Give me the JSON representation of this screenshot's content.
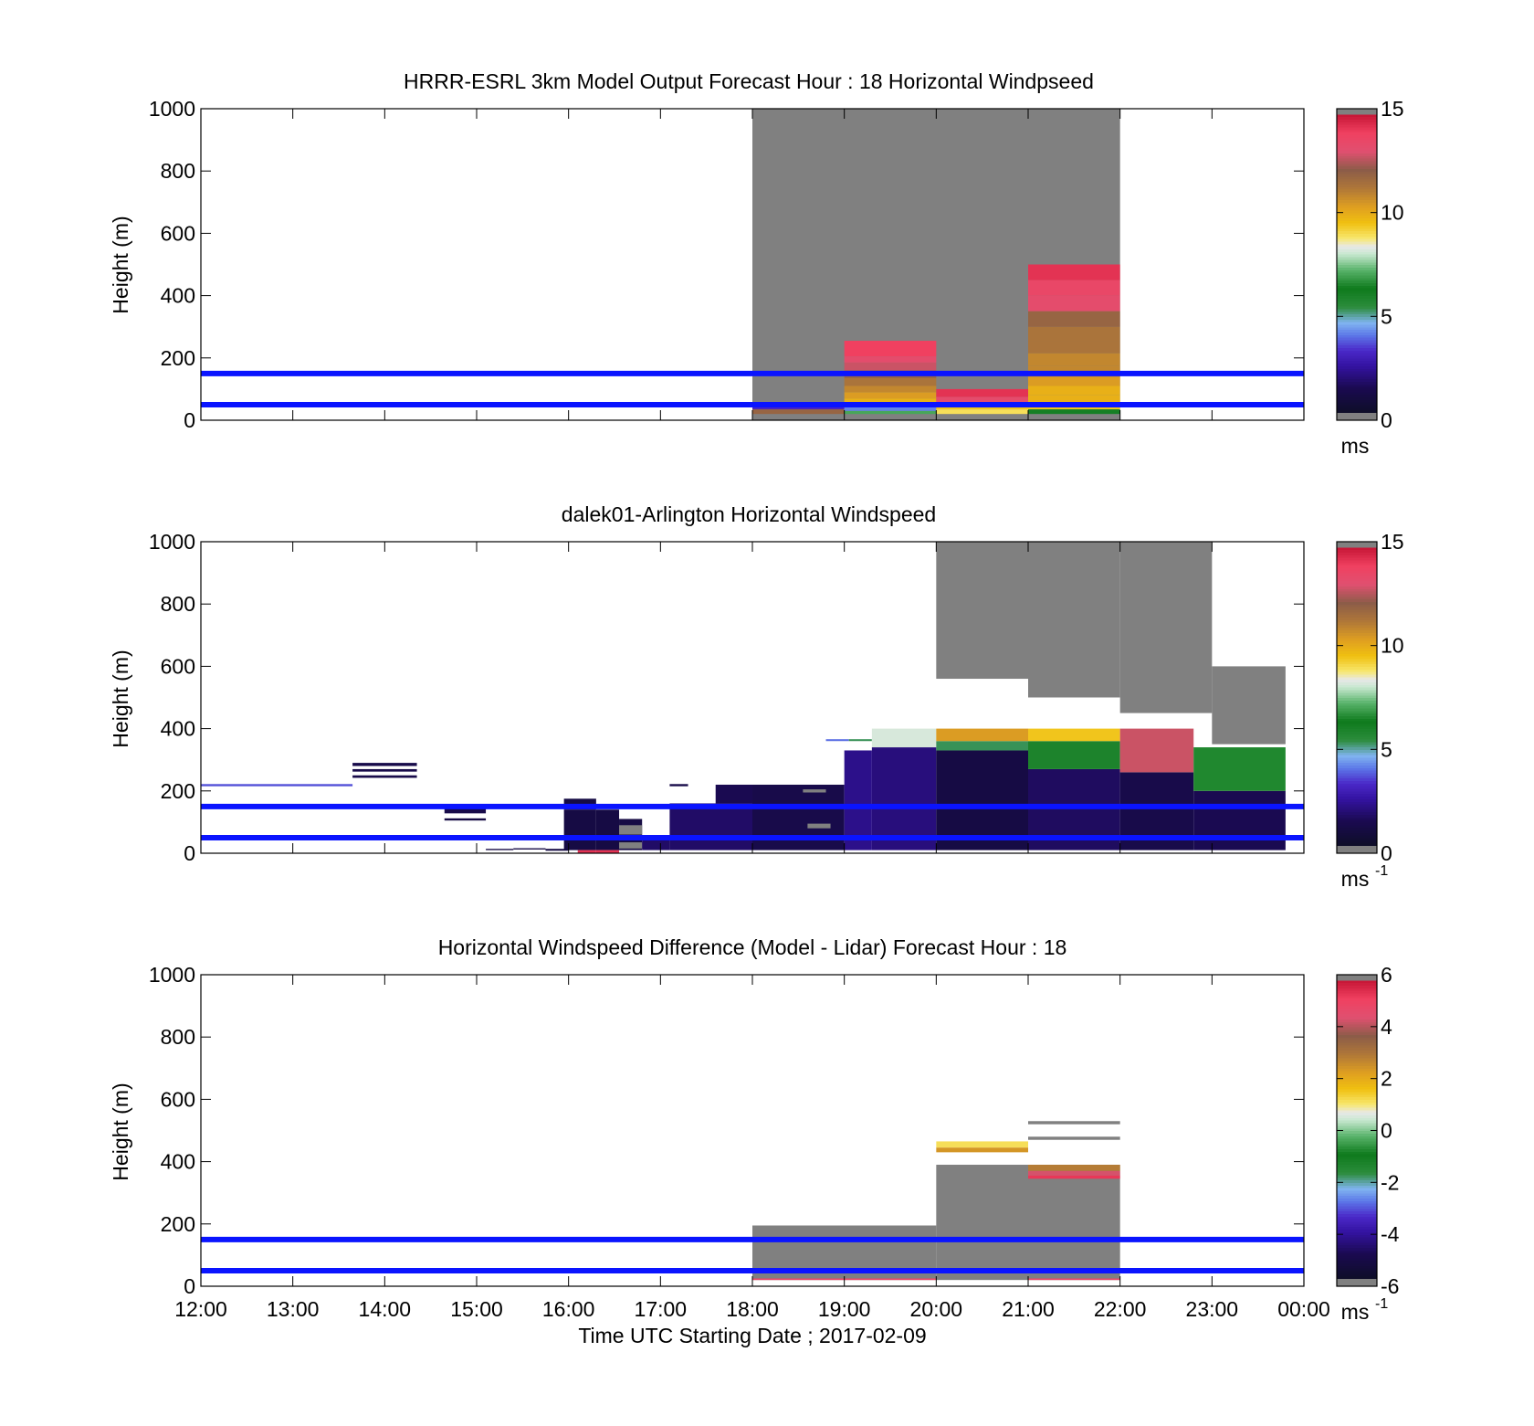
{
  "chart_data": [
    {
      "type": "heatmap",
      "title": "HRRR-ESRL 3km Model Output   Forecast Hour : 18 Horizontal Windpseed",
      "ylabel": "Height (m)",
      "xlim": [
        12,
        24
      ],
      "ylim": [
        0,
        1000
      ],
      "yticks": [
        "0",
        "200",
        "400",
        "600",
        "800",
        "1000"
      ],
      "colorbar": {
        "range": [
          0,
          15
        ],
        "ticks": [
          "0",
          "5",
          "10",
          "15"
        ],
        "unit": "ms",
        "unit_sup": ""
      },
      "reference_lines_m": [
        50,
        150
      ],
      "cells": [
        {
          "t0": 18,
          "t1": 22,
          "z0": 0,
          "z1": 1000,
          "v": "nan"
        },
        {
          "t0": 18,
          "t1": 19,
          "z0": 20,
          "z1": 35,
          "v": 12
        },
        {
          "t0": 18,
          "t1": 19,
          "z0": 35,
          "z1": 45,
          "v": 3
        },
        {
          "t0": 19,
          "t1": 20,
          "z0": 20,
          "z1": 30,
          "v": 7
        },
        {
          "t0": 19,
          "t1": 20,
          "z0": 30,
          "z1": 50,
          "v": 4
        },
        {
          "t0": 19,
          "t1": 20,
          "z0": 50,
          "z1": 70,
          "v": 10
        },
        {
          "t0": 19,
          "t1": 20,
          "z0": 70,
          "z1": 90,
          "v": 10.5
        },
        {
          "t0": 19,
          "t1": 20,
          "z0": 90,
          "z1": 110,
          "v": 11
        },
        {
          "t0": 19,
          "t1": 20,
          "z0": 110,
          "z1": 135,
          "v": 11.5
        },
        {
          "t0": 19,
          "t1": 20,
          "z0": 135,
          "z1": 160,
          "v": 12
        },
        {
          "t0": 19,
          "t1": 20,
          "z0": 160,
          "z1": 185,
          "v": 13
        },
        {
          "t0": 19,
          "t1": 20,
          "z0": 185,
          "z1": 205,
          "v": 13.5
        },
        {
          "t0": 19,
          "t1": 20,
          "z0": 205,
          "z1": 255,
          "v": 14.2
        },
        {
          "t0": 20,
          "t1": 21,
          "z0": 20,
          "z1": 35,
          "v": 9
        },
        {
          "t0": 20,
          "t1": 21,
          "z0": 35,
          "z1": 55,
          "v": 9.5
        },
        {
          "t0": 20,
          "t1": 21,
          "z0": 55,
          "z1": 75,
          "v": 13.5
        },
        {
          "t0": 20,
          "t1": 21,
          "z0": 75,
          "z1": 100,
          "v": 14.5
        },
        {
          "t0": 21,
          "t1": 22,
          "z0": 20,
          "z1": 35,
          "v": 6
        },
        {
          "t0": 21,
          "t1": 22,
          "z0": 35,
          "z1": 55,
          "v": 9.5
        },
        {
          "t0": 21,
          "t1": 22,
          "z0": 55,
          "z1": 80,
          "v": 10
        },
        {
          "t0": 21,
          "t1": 22,
          "z0": 80,
          "z1": 110,
          "v": 10
        },
        {
          "t0": 21,
          "t1": 22,
          "z0": 110,
          "z1": 140,
          "v": 10.5
        },
        {
          "t0": 21,
          "t1": 22,
          "z0": 140,
          "z1": 175,
          "v": 11
        },
        {
          "t0": 21,
          "t1": 22,
          "z0": 175,
          "z1": 215,
          "v": 11
        },
        {
          "t0": 21,
          "t1": 22,
          "z0": 215,
          "z1": 255,
          "v": 11.5
        },
        {
          "t0": 21,
          "t1": 22,
          "z0": 255,
          "z1": 300,
          "v": 11.5
        },
        {
          "t0": 21,
          "t1": 22,
          "z0": 300,
          "z1": 350,
          "v": 12
        },
        {
          "t0": 21,
          "t1": 22,
          "z0": 350,
          "z1": 400,
          "v": 13.5
        },
        {
          "t0": 21,
          "t1": 22,
          "z0": 400,
          "z1": 450,
          "v": 13.8
        },
        {
          "t0": 21,
          "t1": 22,
          "z0": 450,
          "z1": 500,
          "v": 14.5
        }
      ]
    },
    {
      "type": "heatmap",
      "title": "dalek01-Arlington  Horizontal Windspeed",
      "ylabel": "Height (m)",
      "xlim": [
        12,
        24
      ],
      "ylim": [
        0,
        1000
      ],
      "yticks": [
        "0",
        "200",
        "400",
        "600",
        "800",
        "1000"
      ],
      "colorbar": {
        "range": [
          0,
          15
        ],
        "ticks": [
          "0",
          "5",
          "10",
          "15"
        ],
        "unit": "ms",
        "unit_sup": "-1"
      },
      "reference_lines_m": [
        50,
        150
      ],
      "cells": [
        {
          "t0": 12.0,
          "t1": 13.65,
          "z0": 215,
          "z1": 222,
          "v": 3.5
        },
        {
          "t0": 13.65,
          "t1": 14.35,
          "z0": 280,
          "z1": 290,
          "v": 1
        },
        {
          "t0": 13.65,
          "t1": 14.35,
          "z0": 262,
          "z1": 270,
          "v": 1
        },
        {
          "t0": 13.65,
          "t1": 14.35,
          "z0": 242,
          "z1": 250,
          "v": 1
        },
        {
          "t0": 14.65,
          "t1": 15.1,
          "z0": 128,
          "z1": 150,
          "v": 1
        },
        {
          "t0": 14.65,
          "t1": 15.1,
          "z0": 105,
          "z1": 112,
          "v": 0.8
        },
        {
          "t0": 15.1,
          "t1": 15.4,
          "z0": 10,
          "z1": 14,
          "v": 0.8
        },
        {
          "t0": 15.4,
          "t1": 15.75,
          "z0": 12,
          "z1": 16,
          "v": 0.8
        },
        {
          "t0": 15.75,
          "t1": 16.0,
          "z0": 8,
          "z1": 14,
          "v": 0.8
        },
        {
          "t0": 15.95,
          "t1": 16.3,
          "z0": 140,
          "z1": 175,
          "v": 0.8
        },
        {
          "t0": 15.95,
          "t1": 16.3,
          "z0": 10,
          "z1": 140,
          "v": 0.8
        },
        {
          "t0": 16.1,
          "t1": 16.3,
          "z0": 0,
          "z1": 10,
          "v": 14.5
        },
        {
          "t0": 16.3,
          "t1": 16.55,
          "z0": 10,
          "z1": 140,
          "v": 0.8
        },
        {
          "t0": 16.3,
          "t1": 16.55,
          "z0": 0,
          "z1": 10,
          "v": 14.5
        },
        {
          "t0": 16.55,
          "t1": 16.8,
          "z0": 10,
          "z1": 110,
          "v": 0.8
        },
        {
          "t0": 16.55,
          "t1": 16.8,
          "z0": 60,
          "z1": 90,
          "v": "nan"
        },
        {
          "t0": 16.55,
          "t1": 16.8,
          "z0": 15,
          "z1": 35,
          "v": "nan"
        },
        {
          "t0": 16.8,
          "t1": 17.1,
          "z0": 10,
          "z1": 50,
          "v": 1.5
        },
        {
          "t0": 17.1,
          "t1": 18.0,
          "z0": 10,
          "z1": 160,
          "v": 1.5
        },
        {
          "t0": 17.1,
          "t1": 17.3,
          "z0": 215,
          "z1": 222,
          "v": 1
        },
        {
          "t0": 17.6,
          "t1": 18.0,
          "z0": 160,
          "z1": 220,
          "v": 1.2
        },
        {
          "t0": 18.0,
          "t1": 19.0,
          "z0": 10,
          "z1": 220,
          "v": 1.0
        },
        {
          "t0": 18.6,
          "t1": 18.85,
          "z0": 80,
          "z1": 95,
          "v": "nan"
        },
        {
          "t0": 18.55,
          "t1": 18.8,
          "z0": 195,
          "z1": 205,
          "v": "nan"
        },
        {
          "t0": 19.0,
          "t1": 19.3,
          "z0": 10,
          "z1": 330,
          "v": 2.0
        },
        {
          "t0": 18.8,
          "t1": 19.05,
          "z0": 360,
          "z1": 366,
          "v": 3.8
        },
        {
          "t0": 19.05,
          "t1": 19.3,
          "z0": 360,
          "z1": 366,
          "v": 5.2
        },
        {
          "t0": 19.3,
          "t1": 20.0,
          "z0": 10,
          "z1": 340,
          "v": 1.8
        },
        {
          "t0": 19.3,
          "t1": 20.0,
          "z0": 340,
          "z1": 400,
          "v": 8.2
        },
        {
          "t0": 20.0,
          "t1": 21.0,
          "z0": 10,
          "z1": 330,
          "v": 0.8
        },
        {
          "t0": 20.0,
          "t1": 21.0,
          "z0": 330,
          "z1": 360,
          "v": 5.2
        },
        {
          "t0": 20.0,
          "t1": 21.0,
          "z0": 360,
          "z1": 400,
          "v": 10.5
        },
        {
          "t0": 21.0,
          "t1": 22.0,
          "z0": 10,
          "z1": 270,
          "v": 1.4
        },
        {
          "t0": 21.0,
          "t1": 22.0,
          "z0": 270,
          "z1": 360,
          "v": 5.8
        },
        {
          "t0": 21.0,
          "t1": 22.0,
          "z0": 360,
          "z1": 400,
          "v": 9.5
        },
        {
          "t0": 22.0,
          "t1": 22.8,
          "z0": 10,
          "z1": 260,
          "v": 1.0
        },
        {
          "t0": 22.0,
          "t1": 22.8,
          "z0": 260,
          "z1": 400,
          "v": 13.0
        },
        {
          "t0": 22.8,
          "t1": 23.8,
          "z0": 10,
          "z1": 200,
          "v": 1.2
        },
        {
          "t0": 22.8,
          "t1": 23.8,
          "z0": 200,
          "z1": 340,
          "v": 6.5
        },
        {
          "t0": 20.0,
          "t1": 21.0,
          "z0": 560,
          "z1": 1000,
          "v": "nan"
        },
        {
          "t0": 21.0,
          "t1": 22.0,
          "z0": 500,
          "z1": 1000,
          "v": "nan"
        },
        {
          "t0": 22.0,
          "t1": 23.0,
          "z0": 450,
          "z1": 1000,
          "v": "nan"
        },
        {
          "t0": 23.0,
          "t1": 23.8,
          "z0": 350,
          "z1": 600,
          "v": "nan"
        }
      ]
    },
    {
      "type": "heatmap",
      "title": "Horizontal Windspeed Difference (Model - Lidar) Forecast Hour : 18",
      "ylabel": "Height (m)",
      "xlabel": "Time UTC  Starting Date ; 2017-02-09",
      "xlim": [
        12,
        24
      ],
      "ylim": [
        0,
        1000
      ],
      "yticks": [
        "0",
        "200",
        "400",
        "600",
        "800",
        "1000"
      ],
      "xticks": [
        "12:00",
        "13:00",
        "14:00",
        "15:00",
        "16:00",
        "17:00",
        "18:00",
        "19:00",
        "20:00",
        "21:00",
        "22:00",
        "23:00",
        "00:00"
      ],
      "colorbar": {
        "range": [
          -6,
          6
        ],
        "ticks": [
          "-6",
          "-4",
          "-2",
          "0",
          "2",
          "4",
          "6"
        ],
        "unit": "ms",
        "unit_sup": "-1"
      },
      "reference_lines_m": [
        50,
        150
      ],
      "cells": [
        {
          "t0": 18,
          "t1": 20,
          "z0": 20,
          "z1": 195,
          "v": "nan"
        },
        {
          "t0": 20,
          "t1": 22,
          "z0": 20,
          "z1": 390,
          "v": "nan"
        },
        {
          "t0": 18,
          "t1": 19,
          "z0": 20,
          "z1": 25,
          "v": 5
        },
        {
          "t0": 19,
          "t1": 20,
          "z0": 20,
          "z1": 25,
          "v": 5
        },
        {
          "t0": 21,
          "t1": 22,
          "z0": 20,
          "z1": 25,
          "v": 5
        },
        {
          "t0": 20,
          "t1": 21,
          "z0": 445,
          "z1": 465,
          "v": 1.2
        },
        {
          "t0": 20,
          "t1": 21,
          "z0": 430,
          "z1": 445,
          "v": 2.5
        },
        {
          "t0": 21,
          "t1": 22,
          "z0": 370,
          "z1": 390,
          "v": 3.0
        },
        {
          "t0": 21,
          "t1": 22,
          "z0": 355,
          "z1": 370,
          "v": 4.5
        },
        {
          "t0": 21,
          "t1": 22,
          "z0": 345,
          "z1": 355,
          "v": 5.5
        },
        {
          "t0": 21,
          "t1": 22,
          "z0": 470,
          "z1": 480,
          "v": "nan"
        },
        {
          "t0": 21,
          "t1": 22,
          "z0": 520,
          "z1": 530,
          "v": "nan"
        }
      ]
    }
  ]
}
